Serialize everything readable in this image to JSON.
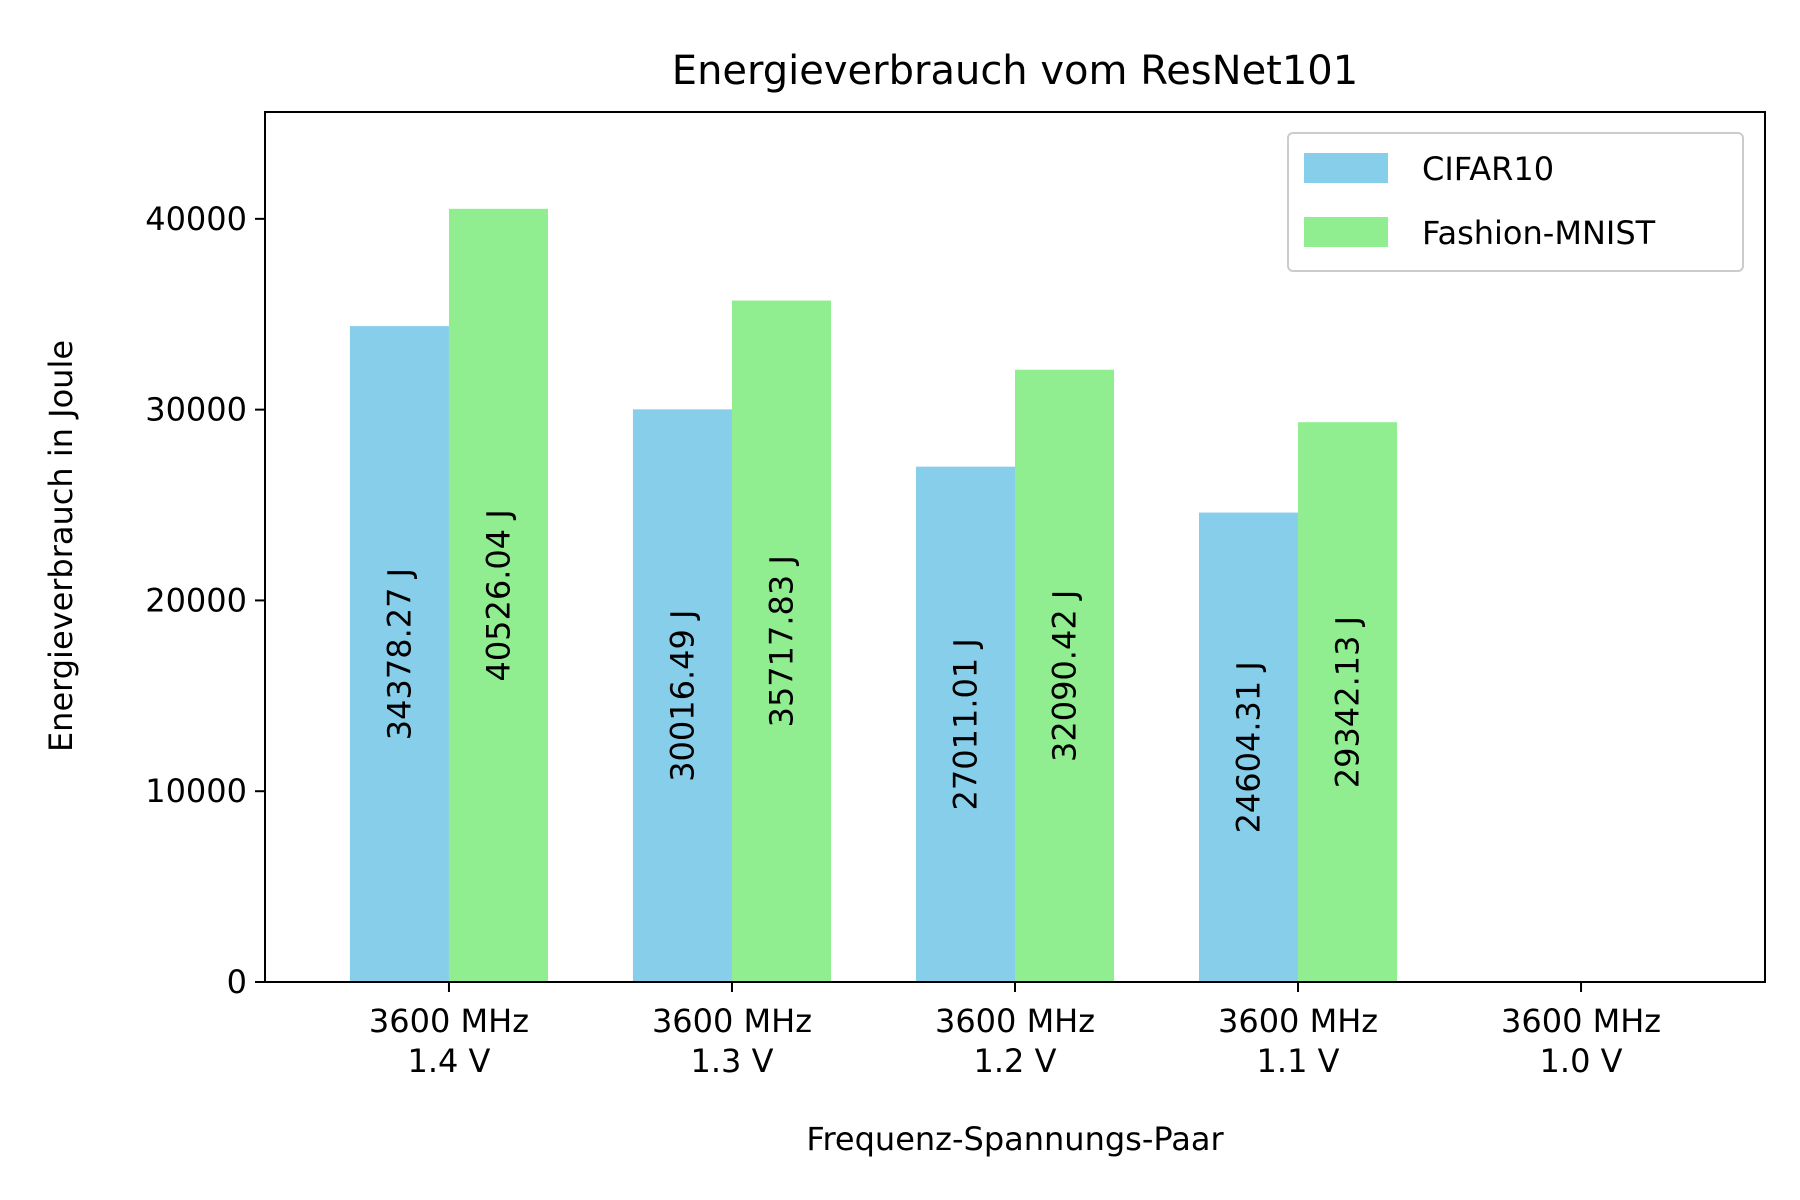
{
  "chart_data": {
    "type": "bar",
    "title": "Energieverbrauch vom ResNet101",
    "xlabel": "Frequenz-Spannungs-Paar",
    "ylabel": "Energieverbrauch in Joule",
    "categories": [
      [
        "3600 MHz",
        "1.4 V"
      ],
      [
        "3600 MHz",
        "1.3 V"
      ],
      [
        "3600 MHz",
        "1.2 V"
      ],
      [
        "3600 MHz",
        "1.1 V"
      ],
      [
        "3600 MHz",
        "1.0 V"
      ]
    ],
    "series": [
      {
        "name": "CIFAR10",
        "color": "#87CEEB",
        "values": [
          34378.27,
          30016.49,
          27011.01,
          24604.31,
          null
        ],
        "labels": [
          "34378.27 J",
          "30016.49 J",
          "27011.01 J",
          "24604.31 J",
          null
        ]
      },
      {
        "name": "Fashion-MNIST",
        "color": "#90EE90",
        "values": [
          40526.04,
          35717.83,
          32090.42,
          29342.13,
          null
        ],
        "labels": [
          "40526.04 J",
          "35717.83 J",
          "32090.42 J",
          "29342.13 J",
          null
        ]
      }
    ],
    "yticks": [
      0,
      10000,
      20000,
      30000,
      40000
    ],
    "ytick_labels": [
      "0",
      "10000",
      "20000",
      "30000",
      "40000"
    ],
    "ylim": [
      0,
      45600
    ],
    "grid": false,
    "legend_position": "top-right"
  }
}
